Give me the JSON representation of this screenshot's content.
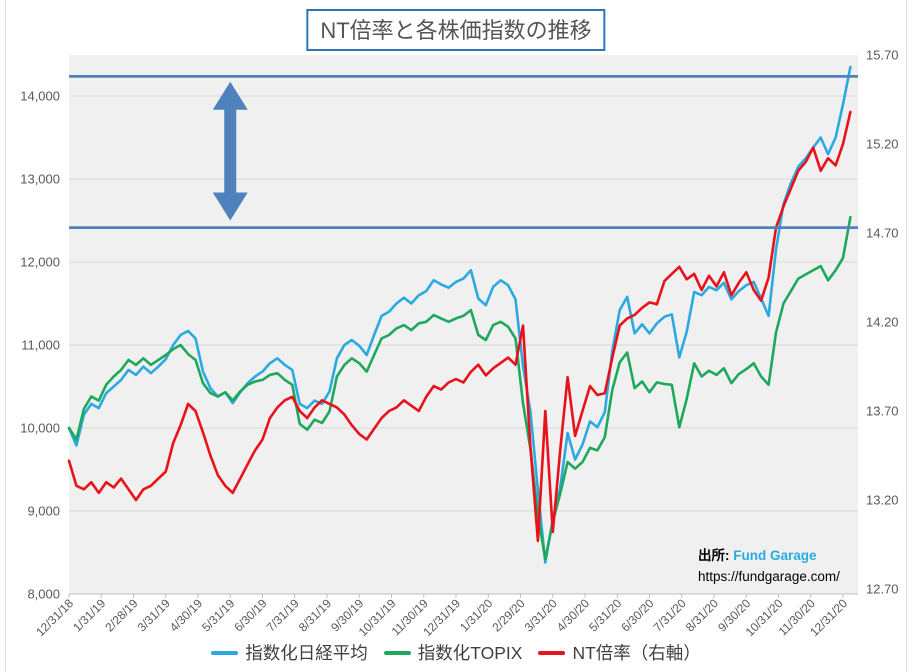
{
  "title": "NT倍率と各株価指数の推移",
  "source": {
    "prefix": "出所:",
    "name": "Fund Garage",
    "url": "https://fundgarage.com/"
  },
  "colors": {
    "nikkei_line": "#2ba9e1",
    "topix_line": "#1da85c",
    "nt_line": "#e8121b",
    "reference_line": "#4f81bd",
    "arrow": "#4f81bd",
    "plot_background": "#f0f0f0",
    "gridline": "#d9d9d9",
    "axis_line": "#bfbfbf",
    "axis_text": "#595959",
    "title_border": "#2e75b6",
    "source_name_color": "#29abe2"
  },
  "chart_data": {
    "type": "line",
    "title": "NT倍率と各株価指数の推移",
    "x_labels": [
      "12/31/18",
      "1/31/19",
      "2/28/19",
      "3/31/19",
      "4/30/19",
      "5/31/19",
      "6/30/19",
      "7/31/19",
      "8/31/19",
      "9/30/19",
      "10/31/19",
      "11/30/19",
      "12/31/19",
      "1/31/20",
      "2/29/20",
      "3/31/20",
      "4/30/20",
      "5/31/20",
      "6/30/20",
      "7/31/20",
      "8/31/20",
      "9/30/20",
      "10/31/20",
      "11/30/20",
      "12/31/20"
    ],
    "left_axis": {
      "min": 8000,
      "max": 14500,
      "tick_step": 1000,
      "tick_labels": [
        "8,000",
        "9,000",
        "10,000",
        "11,000",
        "12,000",
        "13,000",
        "14,000"
      ],
      "tick_values": [
        8000,
        9000,
        10000,
        11000,
        12000,
        13000,
        14000
      ]
    },
    "right_axis": {
      "min": 12.7,
      "max": 15.7,
      "tick_step": 0.5,
      "tick_labels": [
        "12.70",
        "13.20",
        "13.70",
        "14.20",
        "14.70",
        "15.20",
        "15.70"
      ],
      "tick_values": [
        12.7,
        13.2,
        13.7,
        14.2,
        14.7,
        15.2,
        15.7
      ]
    },
    "sampling": "weekly, index 0 = 12/31/18, index 104 = 12/31/20",
    "series": [
      {
        "name": "指数化日経平均",
        "axis": "left",
        "color": "#2ba9e1",
        "values": [
          10000,
          9790,
          10160,
          10290,
          10240,
          10420,
          10500,
          10580,
          10700,
          10640,
          10740,
          10660,
          10740,
          10830,
          11000,
          11120,
          11170,
          11080,
          10680,
          10480,
          10380,
          10430,
          10300,
          10430,
          10540,
          10620,
          10680,
          10780,
          10840,
          10760,
          10700,
          10290,
          10240,
          10330,
          10290,
          10440,
          10840,
          11000,
          11060,
          10990,
          10880,
          11120,
          11350,
          11400,
          11500,
          11570,
          11500,
          11600,
          11650,
          11780,
          11730,
          11690,
          11760,
          11800,
          11900,
          11560,
          11480,
          11700,
          11780,
          11720,
          11550,
          10750,
          10200,
          9250,
          8380,
          8900,
          9280,
          9940,
          9620,
          9800,
          10080,
          10010,
          10190,
          10930,
          11420,
          11580,
          11140,
          11250,
          11140,
          11260,
          11340,
          11370,
          10850,
          11160,
          11640,
          11600,
          11700,
          11660,
          11750,
          11550,
          11650,
          11720,
          11760,
          11560,
          11350,
          12150,
          12700,
          12950,
          13150,
          13250,
          13380,
          13500,
          13300,
          13500,
          13900,
          14350
        ]
      },
      {
        "name": "指数化TOPIX",
        "axis": "left",
        "color": "#1da85c",
        "values": [
          10000,
          9860,
          10230,
          10380,
          10330,
          10520,
          10620,
          10700,
          10820,
          10760,
          10840,
          10760,
          10820,
          10880,
          10950,
          11000,
          10890,
          10820,
          10540,
          10420,
          10380,
          10430,
          10330,
          10440,
          10520,
          10560,
          10580,
          10640,
          10660,
          10580,
          10520,
          10050,
          9980,
          10100,
          10060,
          10200,
          10620,
          10760,
          10840,
          10780,
          10680,
          10880,
          11080,
          11120,
          11200,
          11240,
          11180,
          11260,
          11280,
          11360,
          11320,
          11280,
          11320,
          11350,
          11420,
          11120,
          11060,
          11240,
          11280,
          11220,
          11080,
          10300,
          9750,
          8950,
          8420,
          8870,
          9210,
          9590,
          9510,
          9590,
          9760,
          9730,
          9890,
          10460,
          10790,
          10910,
          10480,
          10560,
          10430,
          10550,
          10530,
          10520,
          10010,
          10350,
          10780,
          10620,
          10690,
          10640,
          10720,
          10540,
          10650,
          10710,
          10780,
          10620,
          10520,
          11150,
          11500,
          11650,
          11800,
          11850,
          11900,
          11950,
          11780,
          11900,
          12050,
          12540
        ]
      },
      {
        "name": "NT倍率（右軸）",
        "axis": "right",
        "color": "#e8121b",
        "values": [
          13.42,
          13.28,
          13.26,
          13.3,
          13.24,
          13.3,
          13.27,
          13.32,
          13.26,
          13.2,
          13.26,
          13.28,
          13.32,
          13.36,
          13.52,
          13.62,
          13.74,
          13.7,
          13.58,
          13.45,
          13.34,
          13.28,
          13.24,
          13.32,
          13.4,
          13.48,
          13.54,
          13.66,
          13.72,
          13.76,
          13.78,
          13.7,
          13.66,
          13.72,
          13.76,
          13.74,
          13.72,
          13.68,
          13.62,
          13.57,
          13.54,
          13.6,
          13.66,
          13.7,
          13.72,
          13.76,
          13.73,
          13.7,
          13.78,
          13.84,
          13.82,
          13.86,
          13.88,
          13.86,
          13.92,
          13.96,
          13.9,
          13.94,
          13.97,
          14.0,
          13.96,
          14.18,
          13.5,
          12.97,
          13.7,
          13.02,
          13.48,
          13.89,
          13.56,
          13.7,
          13.84,
          13.79,
          13.8,
          14.0,
          14.18,
          14.22,
          14.24,
          14.28,
          14.31,
          14.3,
          14.43,
          14.47,
          14.51,
          14.44,
          14.47,
          14.38,
          14.46,
          14.4,
          14.48,
          14.35,
          14.42,
          14.48,
          14.38,
          14.32,
          14.45,
          14.73,
          14.85,
          14.95,
          15.05,
          15.1,
          15.18,
          15.05,
          15.12,
          15.08,
          15.2,
          15.38
        ]
      }
    ],
    "reference_lines": [
      {
        "axis": "right",
        "value": 15.58,
        "color": "#4f81bd"
      },
      {
        "axis": "right",
        "value": 14.73,
        "color": "#4f81bd"
      }
    ],
    "annotation_arrow": {
      "type": "vertical-double-arrow",
      "x_label": "5/31/19",
      "from_right_value": 15.55,
      "to_right_value": 14.77,
      "color": "#4f81bd"
    },
    "legend_position": "bottom",
    "grid": "horizontal-only"
  },
  "legend": {
    "items": [
      "指数化日経平均",
      "指数化TOPIX",
      "NT倍率（右軸）"
    ]
  }
}
